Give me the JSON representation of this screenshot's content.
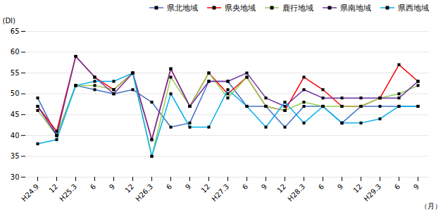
{
  "chart_data": {
    "type": "line",
    "y_label": "(DI)",
    "x_label": "（月）",
    "categories": [
      "H24.9",
      "12",
      "H25.3",
      "6",
      "9",
      "12",
      "H26.3",
      "6",
      "9",
      "12",
      "H27.3",
      "6",
      "9",
      "12",
      "H28.3",
      "6",
      "9",
      "12",
      "H29.3",
      "6",
      "9"
    ],
    "series": [
      {
        "name": "県北地域",
        "color": "#4472C4",
        "values": [
          49,
          40,
          52,
          51,
          50,
          51,
          48,
          42,
          43,
          53,
          53,
          47,
          47,
          42,
          47,
          47,
          43,
          47,
          47,
          47,
          47
        ]
      },
      {
        "name": "県央地域",
        "color": "#FF0000",
        "values": [
          47,
          41,
          59,
          54,
          51,
          55,
          39,
          56,
          47,
          55,
          50,
          54,
          47,
          46,
          54,
          51,
          47,
          47,
          49,
          57,
          53
        ]
      },
      {
        "name": "鹿行地域",
        "color": "#92D050",
        "values": [
          46,
          40,
          52,
          52,
          51,
          55,
          35,
          54,
          47,
          55,
          49,
          54,
          47,
          46,
          48,
          47,
          47,
          47,
          49,
          50,
          52
        ]
      },
      {
        "name": "県南地域",
        "color": "#7030A0",
        "values": [
          47,
          40,
          59,
          54,
          50,
          55,
          39,
          56,
          47,
          53,
          53,
          55,
          49,
          47,
          51,
          49,
          49,
          49,
          49,
          49,
          53
        ]
      },
      {
        "name": "県西地域",
        "color": "#00B0F0",
        "values": [
          38,
          39,
          52,
          53,
          53,
          55,
          35,
          50,
          42,
          42,
          51,
          47,
          42,
          48,
          43,
          47,
          43,
          43,
          44,
          47,
          47
        ]
      }
    ],
    "ylim": [
      30,
      65
    ],
    "yticks": [
      30,
      35,
      40,
      45,
      50,
      55,
      60,
      65
    ],
    "grid": true,
    "legend": "upper right",
    "marker": "square"
  }
}
